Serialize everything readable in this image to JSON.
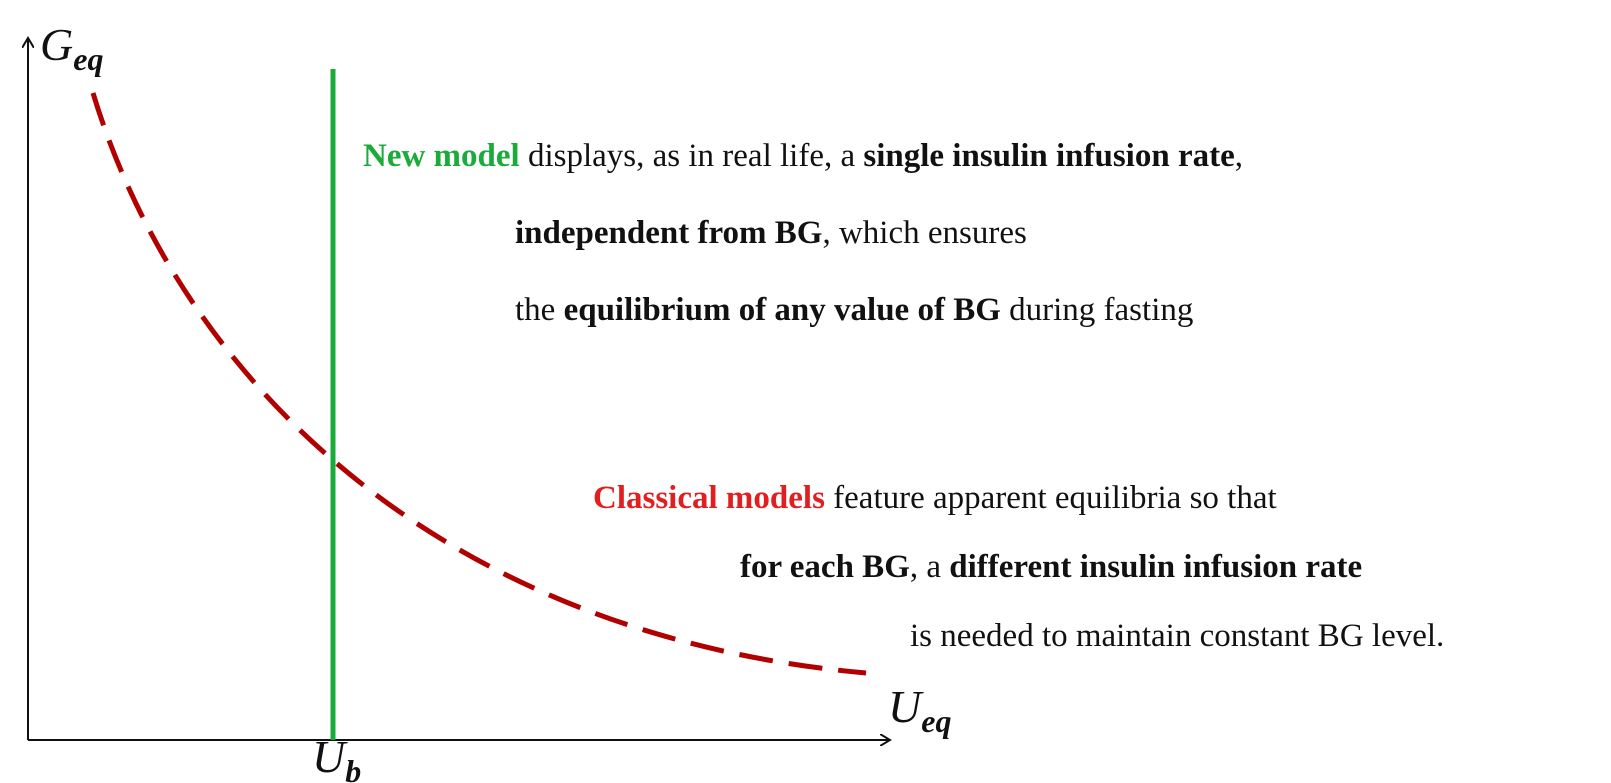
{
  "axes": {
    "y_label": {
      "main": "G",
      "sub": "eq"
    },
    "x_label": {
      "main": "U",
      "sub": "eq"
    },
    "marker_label": {
      "main": "U",
      "sub": "b"
    }
  },
  "annotations": {
    "new_model": {
      "lines": [
        [
          "New model",
          " displays, as in real life, a ",
          "single insulin infusion rate",
          ","
        ],
        [
          "independent from BG",
          ", which ensures"
        ],
        [
          "the ",
          "equilibrium of any value of BG",
          " during fasting"
        ]
      ]
    },
    "classical_models": {
      "lines": [
        [
          "Classical models",
          " feature apparent equilibria so that"
        ],
        [
          "for each BG",
          ", a ",
          "different insulin infusion rate"
        ],
        [
          "is needed to maintain constant BG level."
        ]
      ]
    }
  }
}
